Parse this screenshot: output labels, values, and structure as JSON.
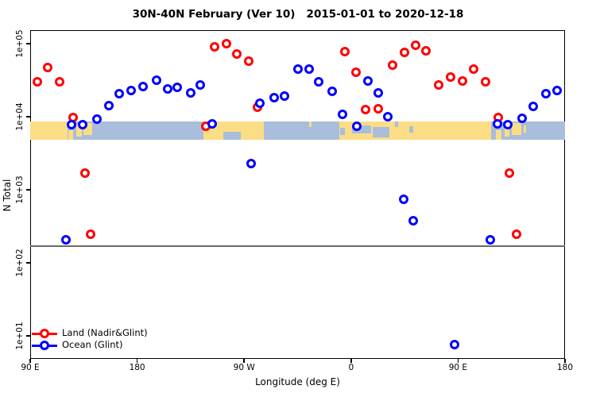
{
  "title": "30N-40N February (Ver 10)   2015-01-01 to 2020-12-18",
  "legend": {
    "items": [
      {
        "label": "Land (Nadir&Glint)",
        "color": "#ff0000"
      },
      {
        "label": "Ocean (Glint)",
        "color": "#0000ff"
      }
    ]
  },
  "chart_data": {
    "type": "scatter",
    "title": "30N-40N February (Ver 10)   2015-01-01 to 2020-12-18",
    "xlabel": "Longitude (deg E)",
    "ylabel": "N Total",
    "x_axis": {
      "note": "longitude axis wraps 450 degrees: 90E to 180 to 90W to 0 to 90E to 180; deg values below are degrees east of Greenwich, extended past 180 (e.g. 270 = 90W, 360 = 0, 450 = 90E, 540 = 180)",
      "domain_deg": [
        90,
        540
      ],
      "ticks_deg": [
        90,
        180,
        270,
        360,
        450,
        540
      ],
      "tick_labels": [
        "90 E",
        "180",
        "90 W",
        "0",
        "90 E",
        "180"
      ]
    },
    "y_axis": {
      "scale": "log",
      "ylim": [
        5,
        160000
      ],
      "tick_values": [
        100000,
        10000,
        1000,
        100,
        10
      ],
      "tick_labels": [
        "1e+05",
        "1e+04",
        "1e+03",
        "1e+02",
        "1e+01"
      ]
    },
    "grid": false,
    "legend_position": "bottom-left",
    "reference_line": {
      "n": 170,
      "color": "#6a6a6a"
    },
    "series": [
      {
        "name": "Land (Nadir&Glint)",
        "color": "#ff0000",
        "points_deg_n": [
          [
            96,
            30000
          ],
          [
            105,
            47200
          ],
          [
            115,
            30000
          ],
          [
            126,
            9750
          ],
          [
            136,
            1690
          ],
          [
            141,
            246
          ],
          [
            238,
            7400
          ],
          [
            245,
            90500
          ],
          [
            255,
            100000
          ],
          [
            264,
            72300
          ],
          [
            274,
            57700
          ],
          [
            281,
            13500
          ],
          [
            355,
            77800
          ],
          [
            364,
            40600
          ],
          [
            372,
            12500
          ],
          [
            383,
            12850
          ],
          [
            395,
            50900
          ],
          [
            405,
            75900
          ],
          [
            414,
            95100
          ],
          [
            423,
            79800
          ],
          [
            434,
            27200
          ],
          [
            444,
            34900
          ],
          [
            454,
            30800
          ],
          [
            463,
            44900
          ],
          [
            473,
            30000
          ],
          [
            484,
            9750
          ],
          [
            493,
            1690
          ],
          [
            499,
            246
          ]
        ]
      },
      {
        "name": "Ocean (Glint)",
        "color": "#0000ff",
        "points_deg_n": [
          [
            120,
            207
          ],
          [
            125,
            7780
          ],
          [
            134,
            7780
          ],
          [
            146,
            9270
          ],
          [
            156,
            14200
          ],
          [
            165,
            20700
          ],
          [
            175,
            22900
          ],
          [
            185,
            25900
          ],
          [
            196,
            31600
          ],
          [
            206,
            24000
          ],
          [
            214,
            25200
          ],
          [
            225,
            21200
          ],
          [
            233,
            27200
          ],
          [
            243,
            7980
          ],
          [
            276,
            2290
          ],
          [
            283,
            15300
          ],
          [
            295,
            18200
          ],
          [
            304,
            19200
          ],
          [
            315,
            44900
          ],
          [
            325,
            44900
          ],
          [
            333,
            30000
          ],
          [
            344,
            22300
          ],
          [
            353,
            10800
          ],
          [
            365,
            7400
          ],
          [
            374,
            30800
          ],
          [
            383,
            21200
          ],
          [
            391,
            10000
          ],
          [
            404,
            740
          ],
          [
            412,
            377
          ],
          [
            447,
            7.6
          ],
          [
            477,
            207
          ],
          [
            483,
            7980
          ],
          [
            492,
            7780
          ],
          [
            504,
            9500
          ],
          [
            513,
            13800
          ],
          [
            524,
            20700
          ],
          [
            533,
            22900
          ]
        ]
      }
    ],
    "map_band": {
      "description": "world-map strip of the 30N-40N latitude band drawn across the plot",
      "n_top": 8600,
      "n_bottom": 4800,
      "ocean_color": "#a9bddc",
      "land_color": "#fbdd86",
      "land_deg": [
        [
          90,
          121.5,
          0,
          1
        ],
        [
          122,
          126,
          0.45,
          1
        ],
        [
          129,
          133.5,
          0.15,
          0.8
        ],
        [
          135,
          142,
          0.1,
          0.75
        ],
        [
          236,
          286.5,
          0,
          1
        ],
        [
          325,
          326.5,
          0,
          0.3
        ],
        [
          350,
          478,
          0,
          1
        ],
        [
          482,
          486.5,
          0.45,
          1
        ],
        [
          489,
          493.5,
          0.15,
          0.8
        ],
        [
          495,
          503,
          0.1,
          0.75
        ],
        [
          505,
          507.5,
          0.2,
          0.6
        ]
      ],
      "ocean_patch_deg": [
        [
          252.5,
          267,
          0.55,
          1
        ],
        [
          350.5,
          354.5,
          0.35,
          0.75
        ],
        [
          361,
          377,
          0.2,
          0.65
        ],
        [
          378,
          392,
          0.3,
          0.85
        ],
        [
          397,
          399.5,
          0,
          0.3
        ],
        [
          409,
          412.5,
          0.25,
          0.6
        ]
      ]
    }
  }
}
